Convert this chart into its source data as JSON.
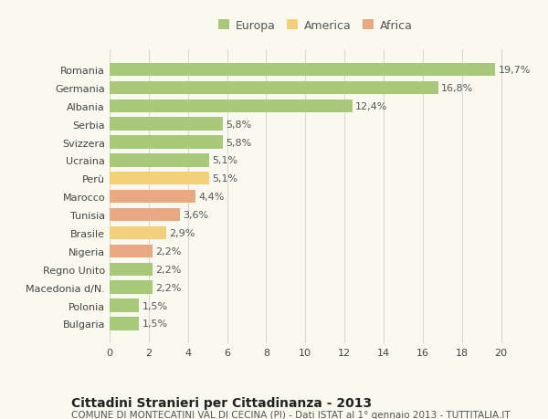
{
  "categories": [
    "Bulgaria",
    "Polonia",
    "Macedonia d/N.",
    "Regno Unito",
    "Nigeria",
    "Brasile",
    "Tunisia",
    "Marocco",
    "Perù",
    "Ucraina",
    "Svizzera",
    "Serbia",
    "Albania",
    "Germania",
    "Romania"
  ],
  "values": [
    1.5,
    1.5,
    2.2,
    2.2,
    2.2,
    2.9,
    3.6,
    4.4,
    5.1,
    5.1,
    5.8,
    5.8,
    12.4,
    16.8,
    19.7
  ],
  "labels": [
    "1,5%",
    "1,5%",
    "2,2%",
    "2,2%",
    "2,2%",
    "2,9%",
    "3,6%",
    "4,4%",
    "5,1%",
    "5,1%",
    "5,8%",
    "5,8%",
    "12,4%",
    "16,8%",
    "19,7%"
  ],
  "colors": [
    "#a8c87a",
    "#a8c87a",
    "#a8c87a",
    "#a8c87a",
    "#e8a882",
    "#f5d07a",
    "#e8a882",
    "#e8a882",
    "#f5d07a",
    "#a8c87a",
    "#a8c87a",
    "#a8c87a",
    "#a8c87a",
    "#a8c87a",
    "#a8c87a"
  ],
  "legend_colors": {
    "Europa": "#a8c87a",
    "America": "#f5d07a",
    "Africa": "#e8a882"
  },
  "title": "Cittadini Stranieri per Cittadinanza - 2013",
  "subtitle": "COMUNE DI MONTECATINI VAL DI CECINA (PI) - Dati ISTAT al 1° gennaio 2013 - TUTTITALIA.IT",
  "xlim": [
    0,
    21
  ],
  "xticks": [
    0,
    2,
    4,
    6,
    8,
    10,
    12,
    14,
    16,
    18,
    20
  ],
  "background_color": "#f9f9f0",
  "grid_color": "#d8d8d8",
  "bar_height": 0.72,
  "title_fontsize": 10,
  "subtitle_fontsize": 7.5,
  "label_fontsize": 8,
  "tick_fontsize": 8,
  "legend_fontsize": 9
}
